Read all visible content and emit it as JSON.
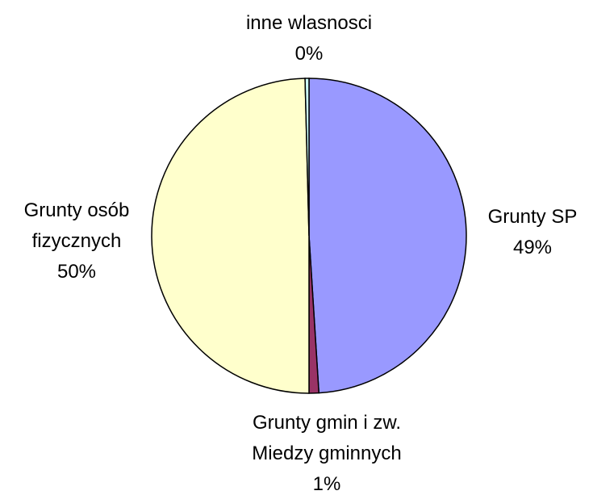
{
  "chart_data": {
    "type": "pie",
    "categories": [
      "Grunty SP",
      "Grunty gmin i zw.\nMiedzy gminnych",
      "Grunty osób\nfizycznych",
      "inne wlasnosci"
    ],
    "values": [
      49,
      1,
      49.6,
      0.4
    ],
    "value_labels": [
      "49%",
      "1%",
      "50%",
      "0%"
    ],
    "colors": [
      "#9999ff",
      "#993366",
      "#ffffcc",
      "#ccffff"
    ]
  }
}
